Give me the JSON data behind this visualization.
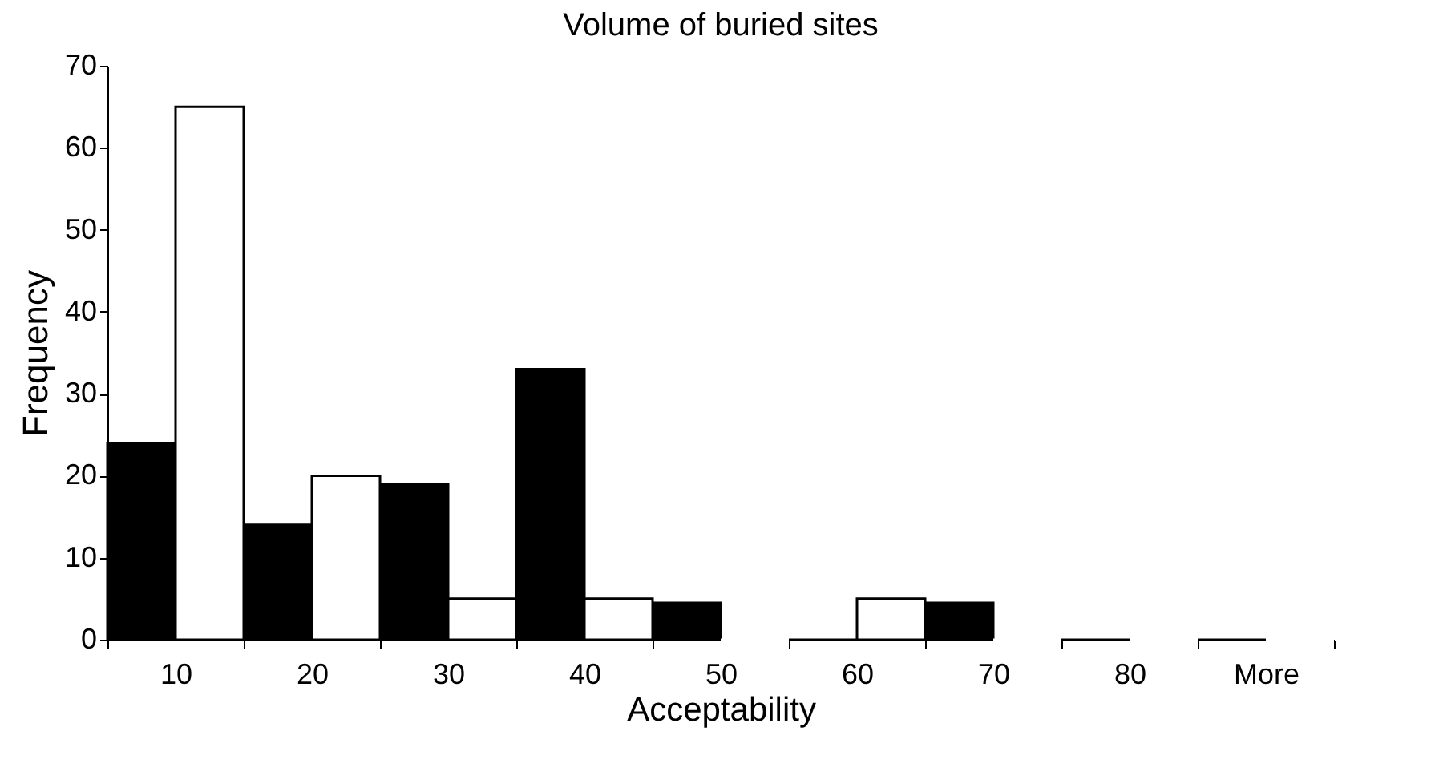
{
  "chart_data": {
    "type": "bar",
    "title": "Volume of buried sites",
    "xlabel": "Acceptability",
    "ylabel": "Frequency",
    "categories": [
      "10",
      "20",
      "30",
      "40",
      "50",
      "60",
      "70",
      "80",
      "More"
    ],
    "series": [
      {
        "color": "#000000",
        "values": [
          24,
          14,
          19,
          33,
          4.5,
          0,
          4.5,
          0,
          0
        ]
      },
      {
        "color": "#ffffff",
        "values": [
          65,
          20,
          5,
          5,
          0,
          5,
          0,
          0,
          0
        ]
      }
    ],
    "ylim": [
      0,
      70
    ],
    "yticks": [
      0,
      10,
      20,
      30,
      40,
      50,
      60,
      70
    ]
  }
}
